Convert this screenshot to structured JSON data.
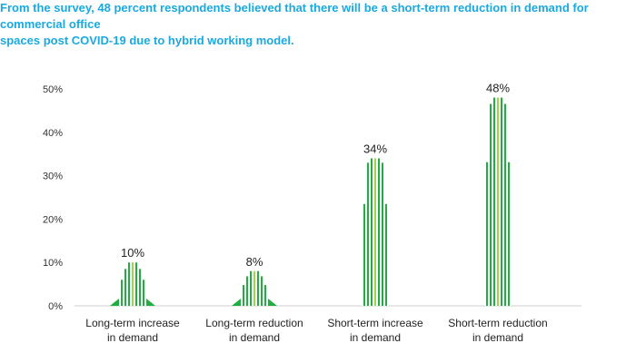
{
  "caption": "From the survey, 48 percent respondents believed that there will be a short-term reduction in demand for commercial office\nspaces post COVID-19 due to hybrid working model.",
  "colors": {
    "caption": "#1aa9e0",
    "bar_green": "#1fae3f",
    "bar_light": "#9ed34a",
    "bar_white": "#ffffff"
  },
  "chart_data": {
    "type": "bar",
    "categories": [
      "Long-term increase\nin demand",
      "Long-term reduction\nin demand",
      "Short-term increase\nin demand",
      "Short-term reduction\nin demand"
    ],
    "values": [
      10,
      8,
      34,
      48
    ],
    "data_labels": [
      "10%",
      "8%",
      "34%",
      "48%"
    ],
    "yticks": [
      "0%",
      "10%",
      "20%",
      "30%",
      "40%",
      "50%"
    ],
    "ylim": [
      0,
      50
    ],
    "grid": false
  }
}
